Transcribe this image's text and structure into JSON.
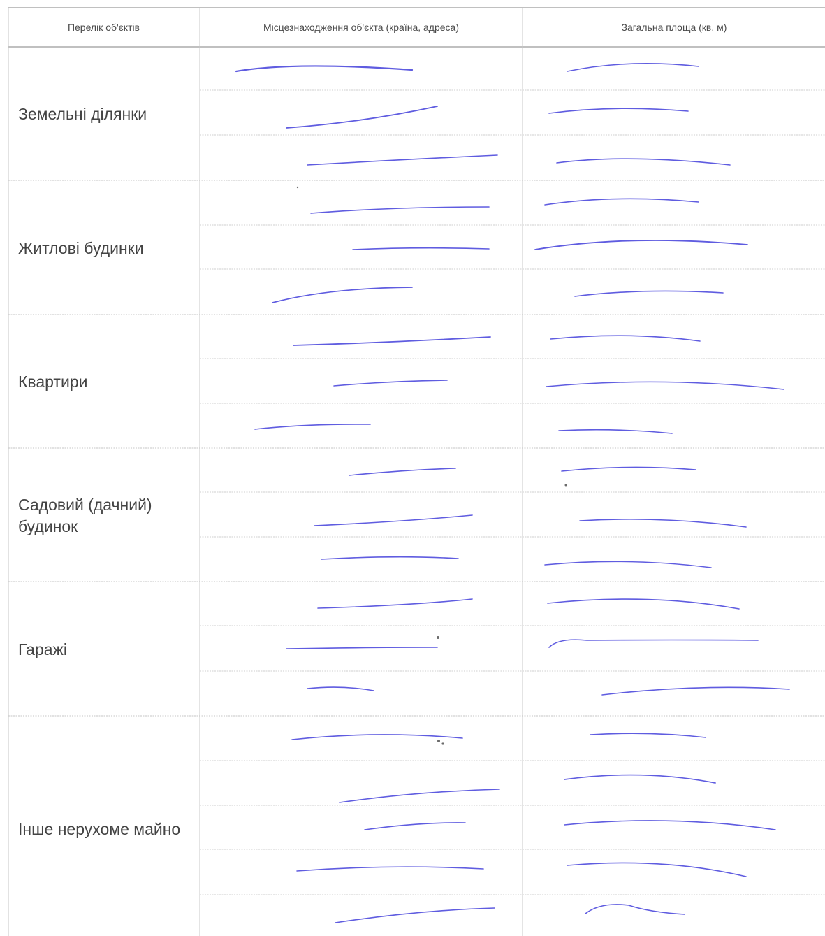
{
  "table": {
    "headers": {
      "objects": "Перелік об'єктів",
      "location": "Місцезнаходження об'єкта (країна, адреса)",
      "area": "Загальна площа (кв. м)"
    },
    "categories": [
      {
        "label": "Земельні ділянки",
        "rows": 3
      },
      {
        "label": "Житлові будинки",
        "rows": 3
      },
      {
        "label": "Квартири",
        "rows": 3
      },
      {
        "label": "Садовий (дачний) будинок",
        "rows": 3
      },
      {
        "label": "Гаражі",
        "rows": 3
      },
      {
        "label": "Інше нерухоме майно",
        "rows": 5
      }
    ]
  },
  "style": {
    "ink_color": "#5f5ce0",
    "grid_color": "#b8b8b8"
  }
}
